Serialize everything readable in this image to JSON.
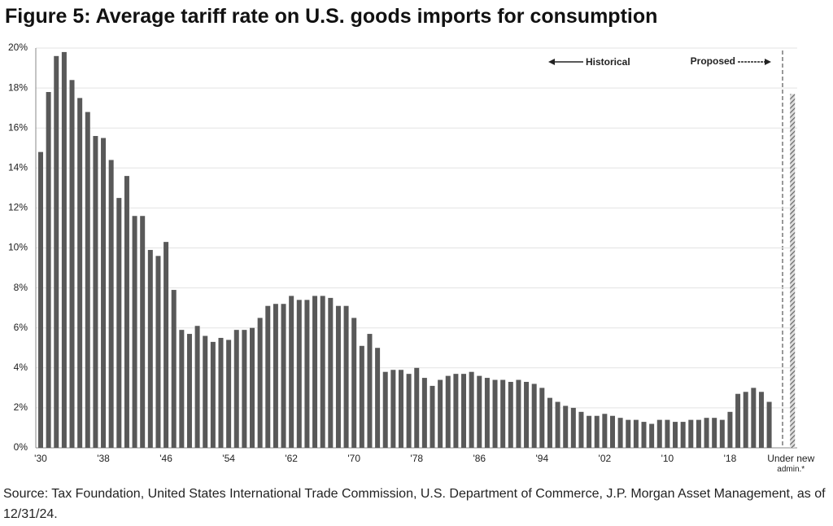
{
  "chart_data": {
    "type": "bar",
    "title": "Figure 5: Average tariff rate on U.S. goods imports for consumption",
    "source": "Source: Tax Foundation, United States International Trade Commission, U.S. Department of Commerce, J.P. Morgan Asset Management, as of 12/31/24.",
    "annotations": [
      "Historical",
      "Proposed"
    ],
    "categories": [
      "'30",
      null,
      null,
      null,
      null,
      null,
      null,
      null,
      "'38",
      null,
      null,
      null,
      null,
      null,
      null,
      null,
      "'46",
      null,
      null,
      null,
      null,
      null,
      null,
      null,
      "'54",
      null,
      null,
      null,
      null,
      null,
      null,
      null,
      "'62",
      null,
      null,
      null,
      null,
      null,
      null,
      null,
      "'70",
      null,
      null,
      null,
      null,
      null,
      null,
      null,
      "'78",
      null,
      null,
      null,
      null,
      null,
      null,
      null,
      "'86",
      null,
      null,
      null,
      null,
      null,
      null,
      null,
      "'94",
      null,
      null,
      null,
      null,
      null,
      null,
      null,
      "'02",
      null,
      null,
      null,
      null,
      null,
      null,
      null,
      "'10",
      null,
      null,
      null,
      null,
      null,
      null,
      null,
      "'18",
      null,
      null,
      null,
      null,
      null,
      "Under new admin.*"
    ],
    "values": [
      14.8,
      17.8,
      19.6,
      19.8,
      18.4,
      17.5,
      16.8,
      15.6,
      15.5,
      14.4,
      12.5,
      13.6,
      11.6,
      11.6,
      9.9,
      9.6,
      10.3,
      7.9,
      5.9,
      5.7,
      6.1,
      5.6,
      5.3,
      5.5,
      5.4,
      5.9,
      5.9,
      6.0,
      6.5,
      7.1,
      7.2,
      7.2,
      7.6,
      7.4,
      7.4,
      7.6,
      7.6,
      7.5,
      7.1,
      7.1,
      6.5,
      5.1,
      5.7,
      5.0,
      3.8,
      3.9,
      3.9,
      3.7,
      4.0,
      3.5,
      3.1,
      3.4,
      3.6,
      3.7,
      3.7,
      3.8,
      3.6,
      3.5,
      3.4,
      3.4,
      3.3,
      3.4,
      3.3,
      3.2,
      3.0,
      2.5,
      2.3,
      2.1,
      2.0,
      1.8,
      1.6,
      1.6,
      1.7,
      1.6,
      1.5,
      1.4,
      1.4,
      1.3,
      1.2,
      1.4,
      1.4,
      1.3,
      1.3,
      1.4,
      1.4,
      1.5,
      1.5,
      1.4,
      1.8,
      2.7,
      2.8,
      3.0,
      2.8,
      2.3,
      17.7
    ],
    "color": "#595959",
    "ylim": [
      0,
      20
    ],
    "yticks": [
      {
        "value": 0,
        "label": "0%"
      },
      {
        "value": 2,
        "label": "2%"
      },
      {
        "value": 4,
        "label": "4%"
      },
      {
        "value": 6,
        "label": "6%"
      },
      {
        "value": 8,
        "label": "8%"
      },
      {
        "value": 10,
        "label": "10%"
      },
      {
        "value": 12,
        "label": "12%"
      },
      {
        "value": 14,
        "label": "14%"
      },
      {
        "value": 16,
        "label": "16%"
      },
      {
        "value": 18,
        "label": "18%"
      },
      {
        "value": 20,
        "label": "20%"
      }
    ],
    "grid": true
  }
}
